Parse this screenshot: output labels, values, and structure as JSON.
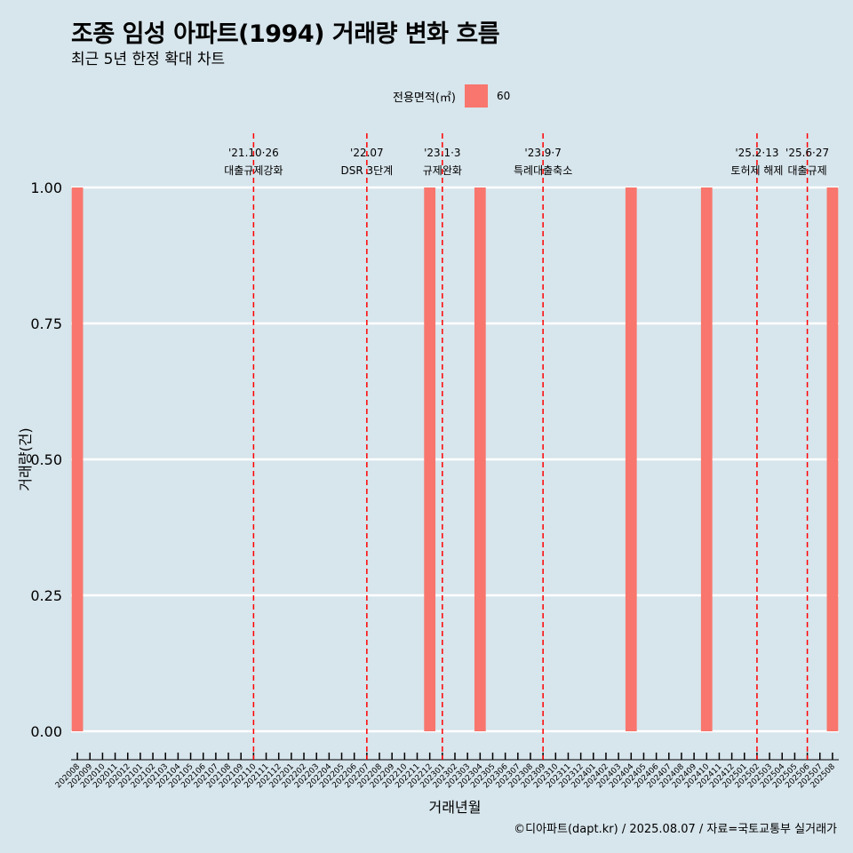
{
  "chart_data": {
    "type": "bar",
    "title": "조종 임성 아파트(1994) 거래량 변화 흐름",
    "subtitle": "최근 5년 한정 확대 차트",
    "xlabel": "거래년월",
    "ylabel": "거래량(건)",
    "ylim": [
      0,
      1
    ],
    "y_ticks": [
      "0.00",
      "0.25",
      "0.50",
      "0.75",
      "1.00"
    ],
    "grid": true,
    "legend": {
      "position": "top",
      "title": "전용면적(㎡)",
      "entries": [
        {
          "label": "60",
          "color": "#f8766d"
        }
      ]
    },
    "categories": [
      "202008",
      "202009",
      "202010",
      "202011",
      "202012",
      "202101",
      "202102",
      "202103",
      "202104",
      "202105",
      "202106",
      "202107",
      "202108",
      "202109",
      "202110",
      "202111",
      "202112",
      "202201",
      "202202",
      "202203",
      "202204",
      "202205",
      "202206",
      "202207",
      "202208",
      "202209",
      "202210",
      "202211",
      "202212",
      "202301",
      "202302",
      "202303",
      "202304",
      "202305",
      "202306",
      "202307",
      "202308",
      "202309",
      "202310",
      "202311",
      "202312",
      "202401",
      "202402",
      "202403",
      "202404",
      "202405",
      "202406",
      "202407",
      "202408",
      "202409",
      "202410",
      "202411",
      "202412",
      "202501",
      "202502",
      "202503",
      "202504",
      "202505",
      "202506",
      "202507",
      "202508"
    ],
    "series": [
      {
        "name": "60",
        "color": "#f8766d",
        "values": [
          1,
          0,
          0,
          0,
          0,
          0,
          0,
          0,
          0,
          0,
          0,
          0,
          0,
          0,
          0,
          0,
          0,
          0,
          0,
          0,
          0,
          0,
          0,
          0,
          0,
          0,
          0,
          0,
          1,
          0,
          0,
          0,
          1,
          0,
          0,
          0,
          0,
          0,
          0,
          0,
          0,
          0,
          0,
          0,
          1,
          0,
          0,
          0,
          0,
          0,
          1,
          0,
          0,
          0,
          0,
          0,
          0,
          0,
          0,
          0,
          1
        ]
      }
    ],
    "annotations": [
      {
        "x": "202110",
        "line1": "'21.10·26",
        "line2": "대출규제강화"
      },
      {
        "x": "202207",
        "line1": "'22.07",
        "line2": "DSR 3단계"
      },
      {
        "x": "202301",
        "line1": "'23.1·3",
        "line2": "규제완화"
      },
      {
        "x": "202309",
        "line1": "'23.9·7",
        "line2": "특례대출축소"
      },
      {
        "x": "202502",
        "line1": "'25.2·13",
        "line2": "토허제 해제"
      },
      {
        "x": "202506",
        "line1": "'25.6·27",
        "line2": "대출규제"
      }
    ],
    "caption": "©디아파트(dapt.kr) / 2025.08.07 / 자료=국토교통부 실거래가"
  }
}
